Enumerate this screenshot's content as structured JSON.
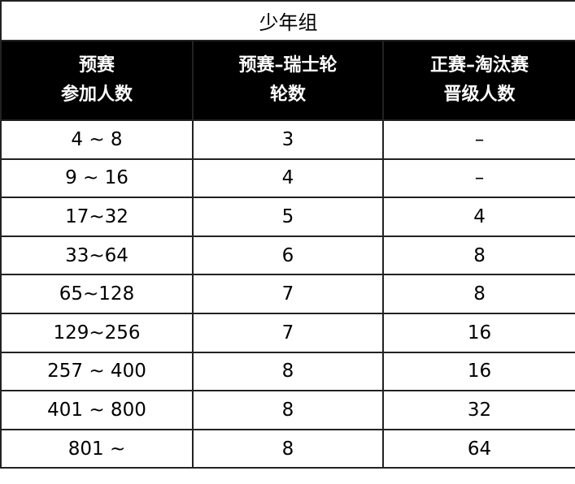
{
  "title": "少年组",
  "headers": [
    [
      "预赛",
      "参加人数"
    ],
    [
      "预赛–瑞士轮",
      "轮数"
    ],
    [
      "正赛–淘汰赛",
      "晋级人数"
    ]
  ],
  "rows": [
    [
      "4 ~ 8",
      "3",
      "–"
    ],
    [
      "9 ~ 16",
      "4",
      "–"
    ],
    [
      "17~32",
      "5",
      "4"
    ],
    [
      "33~64",
      "6",
      "8"
    ],
    [
      "65~128",
      "7",
      "8"
    ],
    [
      "129~256",
      "7",
      "16"
    ],
    [
      "257 ~ 400",
      "8",
      "16"
    ],
    [
      "401 ~ 800",
      "8",
      "32"
    ],
    [
      "801 ~",
      "8",
      "64"
    ]
  ]
}
